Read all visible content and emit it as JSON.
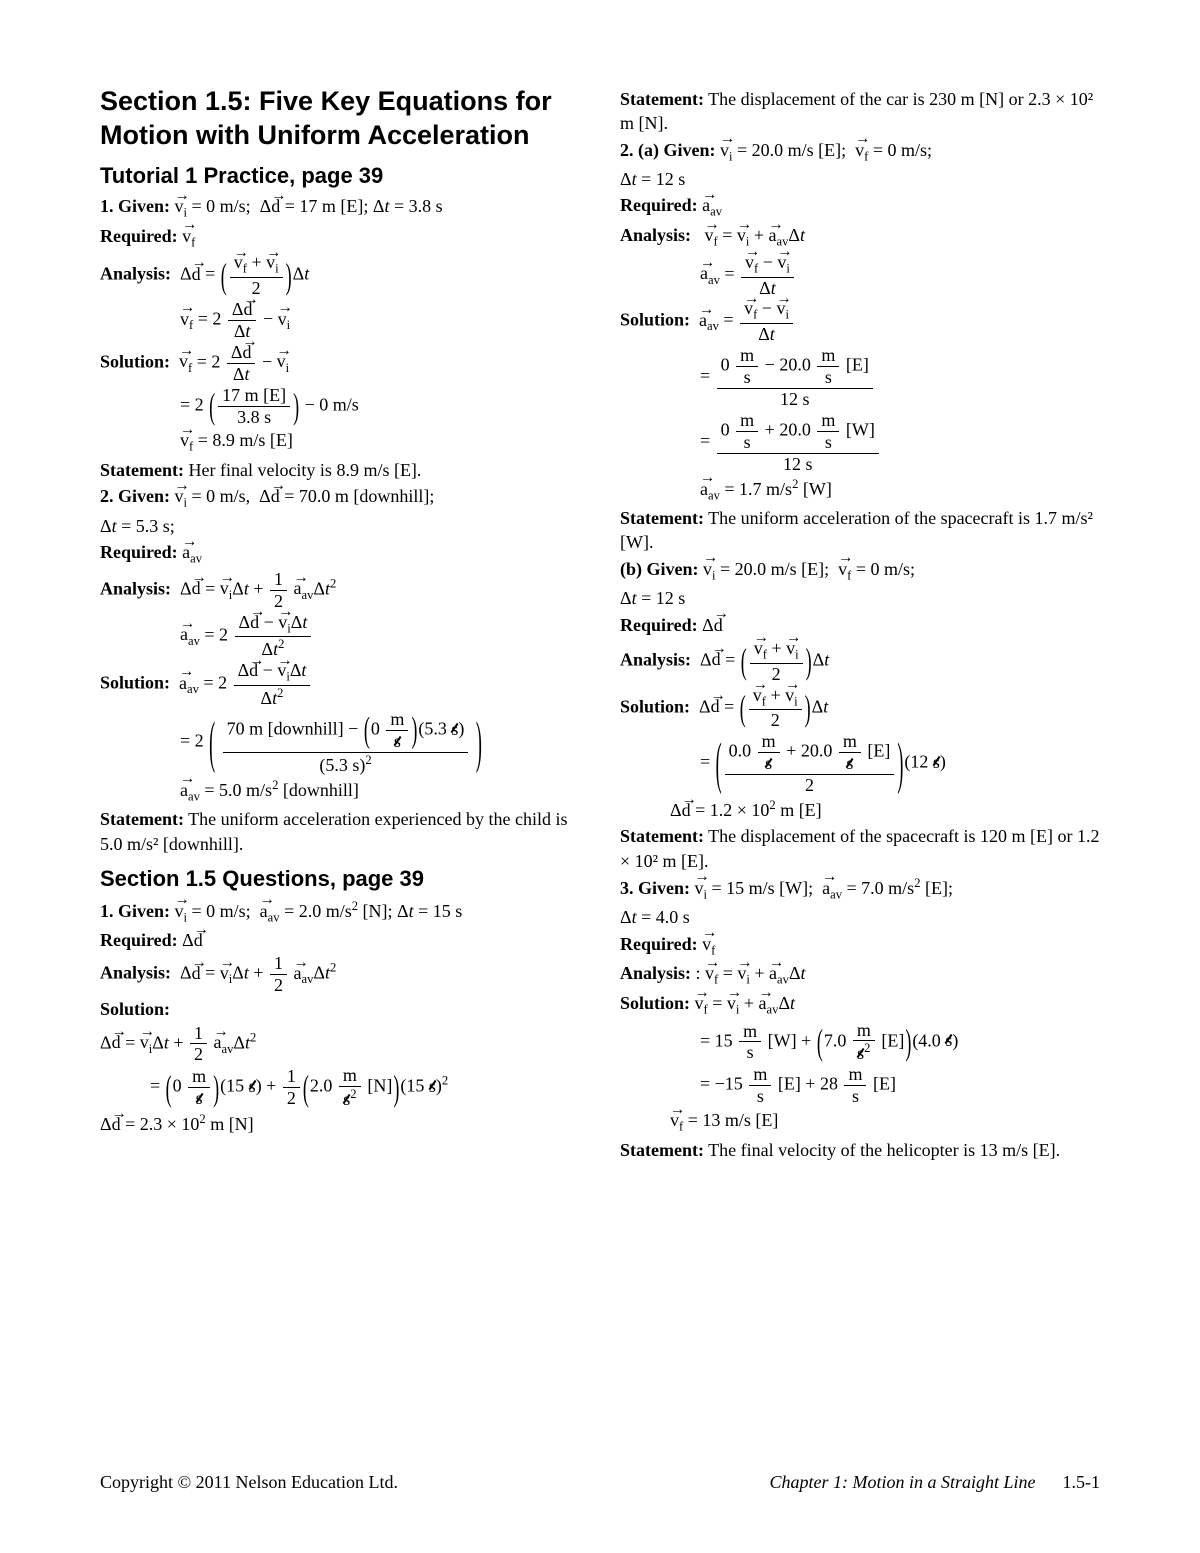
{
  "title": "Section 1.5: Five Key Equations for Motion with Uniform Acceleration",
  "subhead1": "Tutorial 1 Practice, page 39",
  "subhead2": "Section 1.5 Questions, page 39",
  "footer_left": "Copyright © 2011 Nelson Education Ltd.",
  "footer_chapter": "Chapter 1: Motion in a Straight Line",
  "footer_page": "1.5-1",
  "left": {
    "p1_given": "1. Given:",
    "p1_given_vals": " v⃗ᵢ = 0 m/s;  Δd⃗ = 17 m [E]; Δt = 3.8 s",
    "required": "Required:",
    "vf": "v⃗_f",
    "analysis": "Analysis:",
    "solution": "Solution:",
    "vf_result": "v⃗_f = 8.9 m/s [E]",
    "stmt1": "Statement:",
    "stmt1_txt": " Her final velocity is 8.9 m/s [E].",
    "p2_given": "2. Given:",
    "p2_given_vals": " v⃗ᵢ = 0 m/s,  Δd⃗ = 70.0 m [downhill];",
    "p2_dt": "Δt = 5.3 s;",
    "aav": "a⃗_av",
    "aav_result": "a⃗_av = 5.0 m/s² [downhill]",
    "stmt2_txt": " The uniform acceleration experienced by the child is 5.0 m/s² [downhill].",
    "q1_given_vals": " v⃗ᵢ = 0 m/s;  a⃗_av = 2.0 m/s² [N]; Δt = 15 s",
    "dd": "Δd⃗",
    "dd_result": "Δd⃗ = 2.3 × 10² m [N]",
    "eq_values": {
      "d1": "17",
      "t1": "3.8",
      "d2": "70",
      "t2": "5.3",
      "a_q1": "2.0",
      "t_q1": "15"
    }
  },
  "right": {
    "stmt_car": "Statement:",
    "stmt_car_txt": " The displacement of the car is 230 m [N] or 2.3 × 10² m [N].",
    "p2a_given": "2. (a) Given:",
    "p2a_given_vals": " v⃗ᵢ = 20.0 m/s [E];  v⃗_f = 0 m/s;",
    "p2a_dt": "Δt = 12 s",
    "aav_result2": "a⃗_av = 1.7 m/s² [W]",
    "stmt_sc": " The uniform acceleration of the spacecraft is 1.7 m/s² [W].",
    "p2b_given": "(b) Given:",
    "p2b_given_vals": " v⃗ᵢ = 20.0 m/s [E];  v⃗_f = 0 m/s;",
    "p2b_dt": "Δt = 12 s",
    "dd_result2": "Δd⃗ = 1.2 × 10² m [E]",
    "stmt_sc2": " The displacement of the spacecraft is 120 m [E] or 1.2 × 10² m [E].",
    "p3_given": "3. Given:",
    "p3_given_vals": " v⃗ᵢ = 15 m/s [W];  a⃗_av = 7.0 m/s² [E];",
    "p3_dt": "Δt = 4.0 s",
    "vf_result3": "v⃗_f = 13 m/s [E]",
    "stmt_heli": " The final velocity of the helicopter is 13 m/s [E].",
    "eq_values": {
      "vi2a": "20.0",
      "t2a": "12",
      "vi2b_low": "0.0",
      "vi2b_hi": "20.0",
      "t2b": "12",
      "vi3": "15",
      "a3": "7.0",
      "t3": "4.0"
    }
  },
  "colors": {
    "text": "#000000",
    "bg": "#ffffff"
  },
  "fonts": {
    "heading": "Arial",
    "body": "Times New Roman",
    "title_pt": 27,
    "subhead_pt": 22,
    "body_pt": 18
  }
}
